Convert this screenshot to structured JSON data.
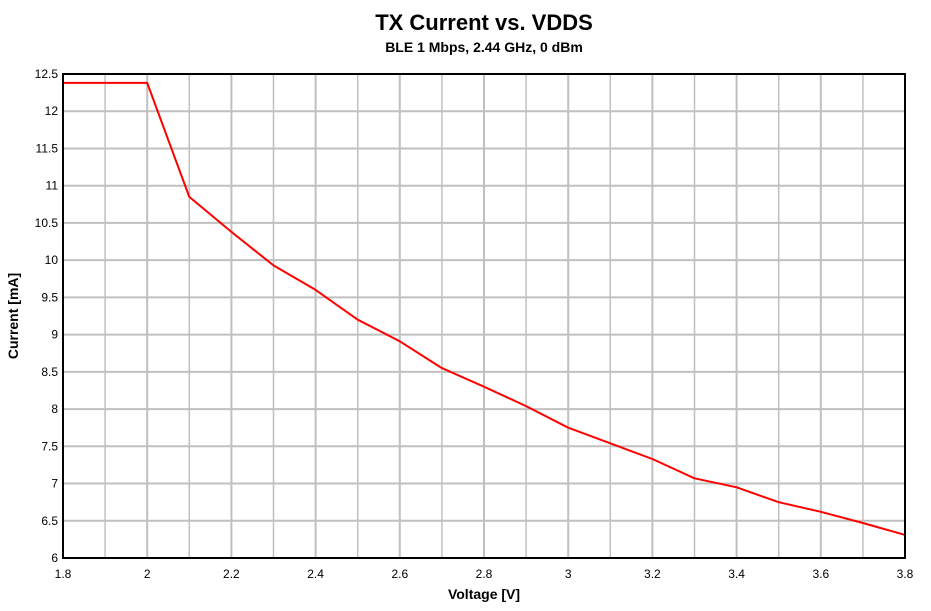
{
  "chart_data": {
    "type": "line",
    "title": "TX Current vs. VDDS",
    "subtitle": "BLE 1 Mbps, 2.44 GHz, 0 dBm",
    "xlabel": "Voltage [V]",
    "ylabel": "Current [mA]",
    "xlim": [
      1.8,
      3.8
    ],
    "ylim": [
      6,
      12.5
    ],
    "xticks": [
      "1.8",
      "2",
      "2.2",
      "2.4",
      "2.6",
      "2.8",
      "3",
      "3.2",
      "3.4",
      "3.6",
      "3.8"
    ],
    "yticks": [
      "6",
      "6.5",
      "7",
      "7.5",
      "8",
      "8.5",
      "9",
      "9.5",
      "10",
      "10.5",
      "11",
      "11.5",
      "12",
      "12.5"
    ],
    "grid": true,
    "series": [
      {
        "color": "#ff0000",
        "x": [
          1.8,
          2.0,
          2.1,
          2.2,
          2.3,
          2.4,
          2.5,
          2.6,
          2.7,
          2.8,
          2.9,
          3.0,
          3.1,
          3.2,
          3.3,
          3.4,
          3.5,
          3.6,
          3.7,
          3.8
        ],
        "y": [
          12.38,
          12.38,
          10.85,
          10.38,
          9.93,
          9.6,
          9.2,
          8.91,
          8.55,
          8.3,
          8.04,
          7.75,
          7.54,
          7.33,
          7.07,
          6.95,
          6.75,
          6.62,
          6.47,
          6.31
        ]
      }
    ]
  }
}
